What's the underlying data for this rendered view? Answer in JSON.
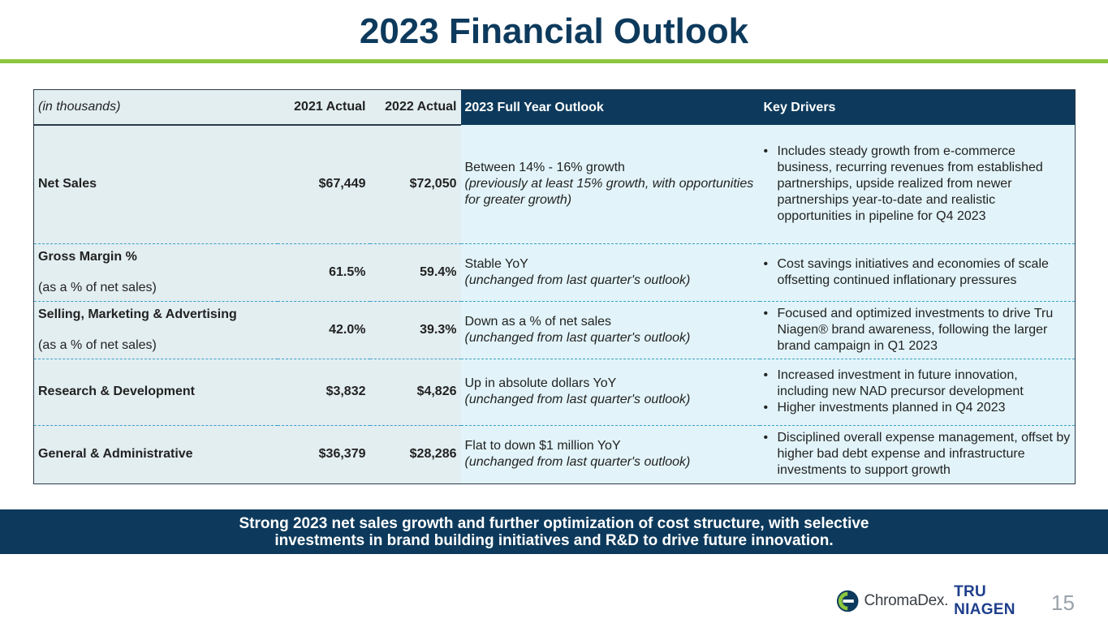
{
  "slide": {
    "title": "2023 Financial Outlook",
    "page_number": "15"
  },
  "table": {
    "headers": {
      "units": "(in thousands)",
      "y2021": "2021 Actual",
      "y2022": "2022 Actual",
      "outlook": "2023 Full Year Outlook",
      "drivers": "Key Drivers"
    },
    "rows": [
      {
        "label": "Net Sales",
        "sublabel": "",
        "y2021": "$67,449",
        "y2022": "$72,050",
        "outlook": "Between 14% - 16% growth",
        "outlook_note": "(previously at least 15% growth, with opportunities for greater growth)",
        "drivers": [
          "Includes steady growth from e-commerce business, recurring revenues from established partnerships, upside realized from newer partnerships year-to-date and realistic opportunities in pipeline for Q4 2023"
        ]
      },
      {
        "label": "Gross Margin %",
        "sublabel": "(as a % of net sales)",
        "y2021": "61.5%",
        "y2022": "59.4%",
        "outlook": "Stable YoY",
        "outlook_note": "(unchanged from last quarter's outlook)",
        "drivers": [
          "Cost savings initiatives and economies of scale offsetting continued inflationary pressures"
        ]
      },
      {
        "label": "Selling, Marketing & Advertising",
        "sublabel": "(as a % of net sales)",
        "y2021": "42.0%",
        "y2022": "39.3%",
        "outlook": "Down as a % of net sales",
        "outlook_note": "(unchanged from last quarter's outlook)",
        "drivers": [
          "Focused and optimized investments to drive Tru Niagen® brand awareness, following the larger brand campaign in Q1 2023"
        ]
      },
      {
        "label": "Research & Development",
        "sublabel": "",
        "y2021": "$3,832",
        "y2022": "$4,826",
        "outlook": "Up in absolute dollars YoY",
        "outlook_note": "(unchanged from last quarter's outlook)",
        "drivers": [
          "Increased investment in future innovation, including new NAD precursor development",
          "Higher investments planned in Q4 2023"
        ]
      },
      {
        "label": "General & Administrative",
        "sublabel": "",
        "y2021": "$36,379",
        "y2022": "$28,286",
        "outlook": "Flat to down $1 million YoY",
        "outlook_note": "(unchanged from last quarter's outlook)",
        "drivers": [
          "Disciplined overall expense management, offset by higher bad debt expense and infrastructure investments to support growth"
        ]
      }
    ]
  },
  "banner": {
    "line1": "Strong 2023 net sales growth and further optimization of cost structure, with selective",
    "line2": "investments in brand building initiatives and R&D to drive future innovation."
  },
  "logo": {
    "brand": "ChromaDex.",
    "product": "TRU NIAGEN",
    "mark_icon": "chromadex-logo-icon",
    "colors": {
      "navy": "#0d3a5c",
      "green": "#8dc63f",
      "blue": "#1f3f8c"
    }
  }
}
